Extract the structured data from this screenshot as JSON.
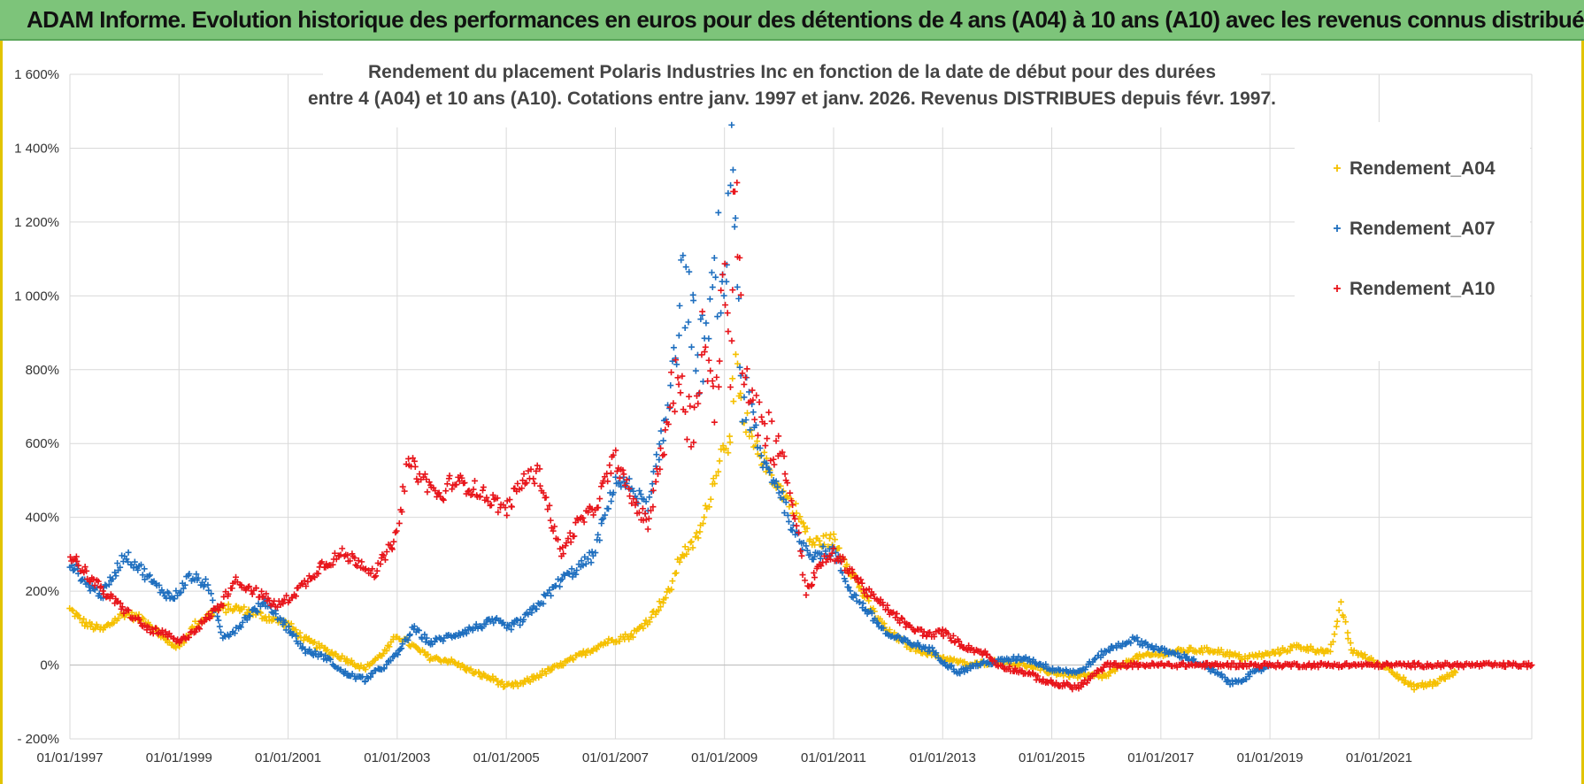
{
  "header": {
    "title": "ADAM Informe. Evolution historique des performances en euros pour des détentions de 4 ans (A04) à 10 ans (A10) avec les revenus connus distribués"
  },
  "chart_data": {
    "type": "scatter",
    "title": [
      "Rendement du placement Polaris Industries Inc en fonction de la date de début pour des durées",
      "entre 4 (A04) et 10 ans (A10). Cotations entre janv. 1997 et janv. 2026. Revenus DISTRIBUES depuis févr. 1997."
    ],
    "xlabel": "",
    "ylabel": "",
    "x_unit": "year",
    "xlim": [
      1997.0,
      2023.8
    ],
    "ylim": [
      -200,
      1600
    ],
    "yticks": [
      -200,
      0,
      200,
      400,
      600,
      800,
      1000,
      1200,
      1400,
      1600
    ],
    "ytick_labels": [
      "- 200%",
      "0%",
      "200%",
      "400%",
      "600%",
      "800%",
      "1 000%",
      "1 200%",
      "1 400%",
      "1 600%"
    ],
    "xticks": [
      1997,
      1999,
      2001,
      2003,
      2005,
      2007,
      2009,
      2011,
      2013,
      2015,
      2017,
      2019,
      2021
    ],
    "xtick_labels": [
      "01/01/1997",
      "01/01/1999",
      "01/01/2001",
      "01/01/2003",
      "01/01/2005",
      "01/01/2007",
      "01/01/2009",
      "01/01/2011",
      "01/01/2013",
      "01/01/2015",
      "01/01/2017",
      "01/01/2019",
      "01/01/2021"
    ],
    "legend_position": "top-right",
    "marker": "+",
    "series": [
      {
        "name": "Rendement_A04",
        "color": "#f5c000",
        "x": [
          1997.0,
          1997.3,
          1997.6,
          1998.0,
          1998.4,
          1998.8,
          1999.0,
          1999.3,
          1999.7,
          2000.0,
          2000.4,
          2000.8,
          2001.0,
          2001.3,
          2001.7,
          2002.0,
          2002.4,
          2002.8,
          2003.0,
          2003.3,
          2003.6,
          2004.0,
          2004.4,
          2004.8,
          2005.0,
          2005.3,
          2005.7,
          2006.0,
          2006.4,
          2006.8,
          2007.0,
          2007.3,
          2007.6,
          2008.0,
          2008.2,
          2008.4,
          2008.6,
          2008.8,
          2009.0,
          2009.2,
          2009.4,
          2009.7,
          2010.0,
          2010.3,
          2010.6,
          2011.0,
          2011.3,
          2011.7,
          2012.0,
          2012.4,
          2012.8,
          2013.0,
          2013.5,
          2014.0,
          2014.5,
          2015.0,
          2015.5,
          2016.0,
          2016.5,
          2017.0,
          2017.5,
          2018.0,
          2018.5,
          2019.0,
          2019.5,
          2019.9,
          2020.1,
          2020.3,
          2020.5,
          2020.9,
          2021.2,
          2021.6,
          2022.0,
          2022.4
        ],
        "y": [
          150,
          110,
          95,
          140,
          120,
          60,
          50,
          110,
          150,
          155,
          140,
          120,
          110,
          70,
          40,
          20,
          -10,
          40,
          80,
          50,
          20,
          10,
          -20,
          -40,
          -60,
          -50,
          -20,
          0,
          30,
          60,
          70,
          80,
          120,
          200,
          300,
          320,
          380,
          500,
          600,
          750,
          620,
          560,
          480,
          420,
          330,
          340,
          260,
          150,
          90,
          50,
          30,
          20,
          0,
          10,
          0,
          -20,
          -30,
          -30,
          20,
          30,
          40,
          40,
          20,
          30,
          50,
          40,
          30,
          160,
          40,
          10,
          -10,
          -60,
          -50,
          -20
        ]
      },
      {
        "name": "Rendement_A07",
        "color": "#1f6fbf",
        "x": [
          1997.0,
          1997.3,
          1997.6,
          1998.0,
          1998.3,
          1998.6,
          1998.9,
          1999.2,
          1999.5,
          1999.8,
          2000.0,
          2000.3,
          2000.6,
          2001.0,
          2001.3,
          2001.7,
          2002.0,
          2002.4,
          2002.8,
          2003.0,
          2003.3,
          2003.6,
          2004.0,
          2004.4,
          2004.8,
          2005.0,
          2005.3,
          2005.7,
          2006.0,
          2006.3,
          2006.6,
          2007.0,
          2007.3,
          2007.6,
          2007.9,
          2008.1,
          2008.3,
          2008.5,
          2008.7,
          2008.9,
          2009.0,
          2009.1,
          2009.2,
          2009.3,
          2009.5,
          2009.7,
          2010.0,
          2010.3,
          2010.6,
          2011.0,
          2011.3,
          2011.6,
          2012.0,
          2012.4,
          2012.8,
          2013.0,
          2013.3,
          2013.6,
          2014.0,
          2014.5,
          2015.0,
          2015.5,
          2016.0,
          2016.5,
          2017.0,
          2017.5,
          2018.0,
          2018.3,
          2018.6,
          2019.0
        ],
        "y": [
          280,
          220,
          190,
          300,
          260,
          210,
          180,
          240,
          220,
          80,
          90,
          140,
          170,
          100,
          40,
          20,
          -20,
          -40,
          0,
          30,
          100,
          60,
          80,
          100,
          120,
          100,
          120,
          180,
          230,
          260,
          300,
          500,
          480,
          420,
          650,
          900,
          1050,
          820,
          900,
          1100,
          900,
          1400,
          1200,
          750,
          650,
          550,
          480,
          350,
          300,
          310,
          200,
          150,
          80,
          60,
          40,
          10,
          -20,
          0,
          10,
          20,
          -10,
          -20,
          40,
          70,
          40,
          20,
          -20,
          -50,
          -30,
          0
        ]
      },
      {
        "name": "Rendement_A10",
        "color": "#e8151b",
        "x": [
          1997.0,
          1997.3,
          1997.6,
          1998.0,
          1998.4,
          1998.8,
          1999.0,
          1999.4,
          1999.8,
          2000.0,
          2000.4,
          2000.8,
          2001.0,
          2001.3,
          2001.6,
          2002.0,
          2002.3,
          2002.6,
          2003.0,
          2003.2,
          2003.5,
          2003.8,
          2004.0,
          2004.4,
          2004.8,
          2005.0,
          2005.3,
          2005.6,
          2006.0,
          2006.3,
          2006.6,
          2007.0,
          2007.3,
          2007.6,
          2008.0,
          2008.2,
          2008.4,
          2008.6,
          2008.8,
          2009.0,
          2009.1,
          2009.2,
          2009.3,
          2009.5,
          2009.7,
          2010.0,
          2010.3,
          2010.5,
          2010.8,
          2011.0,
          2011.3,
          2011.6,
          2012.0,
          2012.4,
          2012.8,
          2013.0,
          2013.4,
          2013.8,
          2014.0,
          2014.5,
          2015.0,
          2015.5,
          2016.0,
          2017.0,
          2018.0,
          2019.0,
          2020.0,
          2021.0,
          2022.0,
          2023.0,
          2023.8
        ],
        "y": [
          300,
          250,
          200,
          150,
          100,
          80,
          60,
          110,
          170,
          230,
          200,
          160,
          180,
          220,
          270,
          300,
          280,
          250,
          350,
          550,
          500,
          450,
          500,
          480,
          440,
          420,
          500,
          520,
          300,
          380,
          420,
          560,
          450,
          380,
          700,
          800,
          620,
          900,
          700,
          1000,
          800,
          1400,
          900,
          750,
          650,
          600,
          400,
          200,
          280,
          300,
          260,
          200,
          150,
          100,
          80,
          90,
          50,
          30,
          0,
          -20,
          -50,
          -60,
          0,
          0,
          0,
          0,
          0,
          0,
          0,
          0,
          0
        ]
      }
    ]
  }
}
